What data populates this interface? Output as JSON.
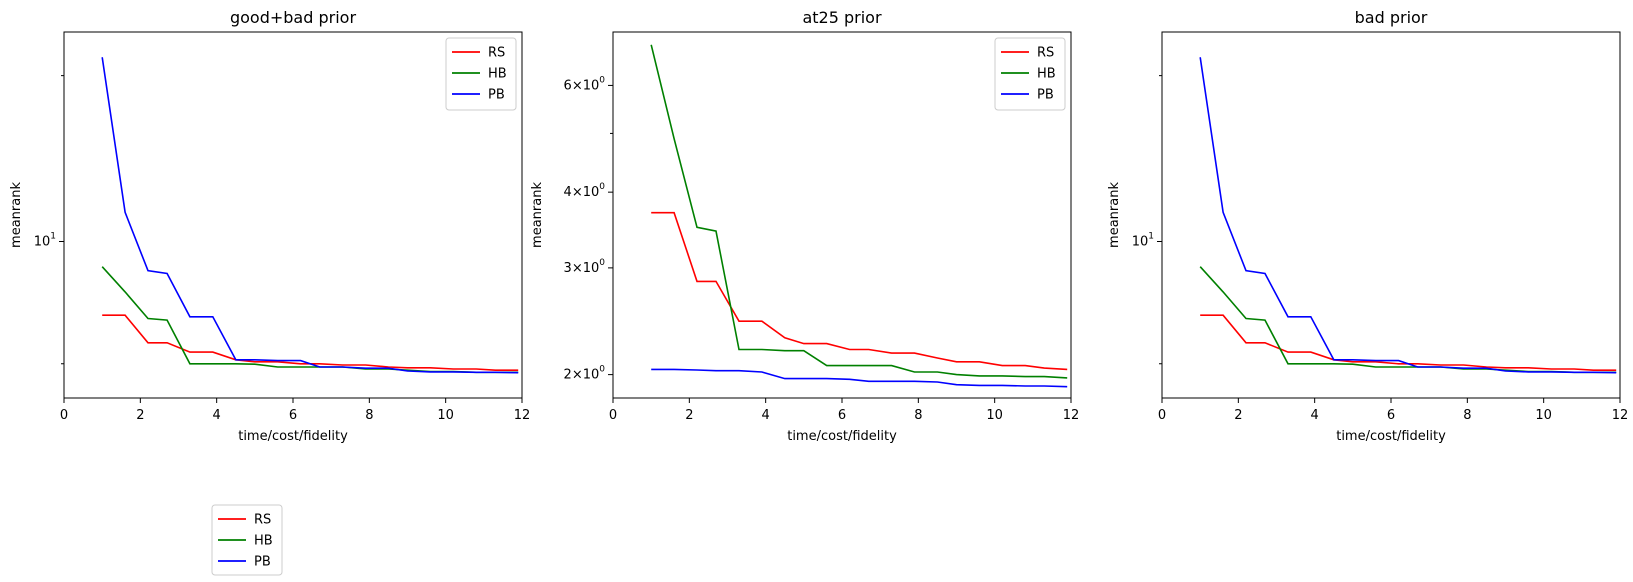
{
  "chart_data": [
    {
      "type": "line",
      "title": "good+bad prior",
      "xlabel": "time/cost/fidelity",
      "ylabel": "meanrank",
      "xlim": [
        0,
        12
      ],
      "ylim": [
        5.2,
        24
      ],
      "yscale": "log",
      "xticks": [
        0,
        2,
        4,
        6,
        8,
        10,
        12
      ],
      "yticks_labeled": [
        {
          "value": 10,
          "label": "10^1"
        }
      ],
      "yticks_minor": [
        6,
        20
      ],
      "legend_placement": "upper right",
      "series": [
        {
          "name": "RS",
          "color": "#ff0000",
          "x": [
            1,
            1.6,
            2.2,
            2.7,
            3.3,
            3.9,
            4.5,
            5.0,
            5.6,
            6.2,
            6.7,
            7.3,
            7.9,
            8.5,
            9.0,
            9.6,
            10.2,
            10.8,
            11.3,
            11.9
          ],
          "y": [
            7.35,
            7.35,
            6.55,
            6.55,
            6.3,
            6.3,
            6.1,
            6.05,
            6.05,
            6.0,
            6.0,
            5.97,
            5.97,
            5.92,
            5.9,
            5.9,
            5.87,
            5.87,
            5.84,
            5.84
          ]
        },
        {
          "name": "HB",
          "color": "#008000",
          "x": [
            1,
            1.6,
            2.2,
            2.7,
            3.3,
            3.9,
            4.5,
            5.0,
            5.6,
            6.2,
            6.7,
            7.3,
            7.9,
            8.5,
            9.0,
            9.6,
            10.2,
            10.8,
            11.3,
            11.9
          ],
          "y": [
            9.0,
            8.1,
            7.25,
            7.2,
            6.0,
            6.0,
            6.0,
            5.99,
            5.92,
            5.92,
            5.92,
            5.92,
            5.87,
            5.87,
            5.84,
            5.81,
            5.81,
            5.79,
            5.79,
            5.79
          ]
        },
        {
          "name": "PB",
          "color": "#0000ff",
          "x": [
            1,
            1.6,
            2.2,
            2.7,
            3.3,
            3.9,
            4.5,
            5.0,
            5.6,
            6.2,
            6.7,
            7.3,
            7.9,
            8.5,
            9.0,
            9.6,
            10.2,
            10.8,
            11.3,
            11.9
          ],
          "y": [
            21.6,
            11.3,
            8.85,
            8.75,
            7.3,
            7.3,
            6.1,
            6.1,
            6.08,
            6.08,
            5.92,
            5.92,
            5.89,
            5.89,
            5.82,
            5.8,
            5.8,
            5.79,
            5.79,
            5.78
          ]
        }
      ]
    },
    {
      "type": "line",
      "title": "at25 prior",
      "xlabel": "time/cost/fidelity",
      "ylabel": "meanrank",
      "xlim": [
        0,
        12
      ],
      "ylim": [
        1.83,
        7.35
      ],
      "yscale": "log",
      "xticks": [
        0,
        2,
        4,
        6,
        8,
        10,
        12
      ],
      "yticks_labeled": [
        {
          "value": 2,
          "label": "2×10^0"
        },
        {
          "value": 3,
          "label": "3×10^0"
        },
        {
          "value": 4,
          "label": "4×10^0"
        },
        {
          "value": 6,
          "label": "6×10^0"
        }
      ],
      "yticks_minor": [
        5
      ],
      "legend_placement": "upper right",
      "series": [
        {
          "name": "RS",
          "color": "#ff0000",
          "x": [
            1,
            1.6,
            2.2,
            2.7,
            3.3,
            3.9,
            4.5,
            5.0,
            5.6,
            6.2,
            6.7,
            7.3,
            7.9,
            8.5,
            9.0,
            9.6,
            10.2,
            10.8,
            11.3,
            11.9
          ],
          "y": [
            3.7,
            3.7,
            2.85,
            2.85,
            2.45,
            2.45,
            2.3,
            2.25,
            2.25,
            2.2,
            2.2,
            2.17,
            2.17,
            2.13,
            2.1,
            2.1,
            2.07,
            2.07,
            2.05,
            2.04
          ]
        },
        {
          "name": "HB",
          "color": "#008000",
          "x": [
            1,
            1.6,
            2.2,
            2.7,
            3.3,
            3.9,
            4.5,
            5.0,
            5.6,
            6.2,
            6.7,
            7.3,
            7.9,
            8.5,
            9.0,
            9.6,
            10.2,
            10.8,
            11.3,
            11.9
          ],
          "y": [
            7.0,
            4.9,
            3.5,
            3.45,
            2.2,
            2.2,
            2.19,
            2.19,
            2.07,
            2.07,
            2.07,
            2.07,
            2.02,
            2.02,
            2.0,
            1.99,
            1.99,
            1.985,
            1.985,
            1.975
          ]
        },
        {
          "name": "PB",
          "color": "#0000ff",
          "x": [
            1,
            1.6,
            2.2,
            2.7,
            3.3,
            3.9,
            4.5,
            5.0,
            5.6,
            6.2,
            6.7,
            7.3,
            7.9,
            8.5,
            9.0,
            9.6,
            10.2,
            10.8,
            11.3,
            11.9
          ],
          "y": [
            2.04,
            2.04,
            2.035,
            2.03,
            2.03,
            2.02,
            1.97,
            1.97,
            1.97,
            1.965,
            1.95,
            1.95,
            1.95,
            1.945,
            1.925,
            1.92,
            1.92,
            1.915,
            1.915,
            1.91
          ]
        }
      ]
    },
    {
      "type": "line",
      "title": "bad prior",
      "xlabel": "time/cost/fidelity",
      "ylabel": "meanrank",
      "xlim": [
        0,
        12
      ],
      "ylim": [
        5.2,
        24
      ],
      "yscale": "log",
      "xticks": [
        0,
        2,
        4,
        6,
        8,
        10,
        12
      ],
      "yticks_labeled": [
        {
          "value": 10,
          "label": "10^1"
        }
      ],
      "yticks_minor": [
        6,
        20
      ],
      "legend_placement": "none",
      "series": [
        {
          "name": "RS",
          "color": "#ff0000",
          "x": [
            1,
            1.6,
            2.2,
            2.7,
            3.3,
            3.9,
            4.5,
            5.0,
            5.6,
            6.2,
            6.7,
            7.3,
            7.9,
            8.5,
            9.0,
            9.6,
            10.2,
            10.8,
            11.3,
            11.9
          ],
          "y": [
            7.35,
            7.35,
            6.55,
            6.55,
            6.3,
            6.3,
            6.1,
            6.05,
            6.05,
            6.0,
            6.0,
            5.97,
            5.97,
            5.92,
            5.9,
            5.9,
            5.87,
            5.87,
            5.84,
            5.84
          ]
        },
        {
          "name": "HB",
          "color": "#008000",
          "x": [
            1,
            1.6,
            2.2,
            2.7,
            3.3,
            3.9,
            4.5,
            5.0,
            5.6,
            6.2,
            6.7,
            7.3,
            7.9,
            8.5,
            9.0,
            9.6,
            10.2,
            10.8,
            11.3,
            11.9
          ],
          "y": [
            9.0,
            8.1,
            7.25,
            7.2,
            6.0,
            6.0,
            6.0,
            5.99,
            5.92,
            5.92,
            5.92,
            5.92,
            5.87,
            5.87,
            5.84,
            5.81,
            5.81,
            5.79,
            5.79,
            5.79
          ]
        },
        {
          "name": "PB",
          "color": "#0000ff",
          "x": [
            1,
            1.6,
            2.2,
            2.7,
            3.3,
            3.9,
            4.5,
            5.0,
            5.6,
            6.2,
            6.7,
            7.3,
            7.9,
            8.5,
            9.0,
            9.6,
            10.2,
            10.8,
            11.3,
            11.9
          ],
          "y": [
            21.6,
            11.3,
            8.85,
            8.75,
            7.3,
            7.3,
            6.1,
            6.1,
            6.08,
            6.08,
            5.92,
            5.92,
            5.89,
            5.89,
            5.82,
            5.8,
            5.8,
            5.79,
            5.79,
            5.78
          ]
        }
      ]
    }
  ],
  "figure_legend": {
    "placement": "lower left, below plots",
    "entries": [
      {
        "name": "RS",
        "color": "#ff0000"
      },
      {
        "name": "HB",
        "color": "#008000"
      },
      {
        "name": "PB",
        "color": "#0000ff"
      }
    ]
  }
}
